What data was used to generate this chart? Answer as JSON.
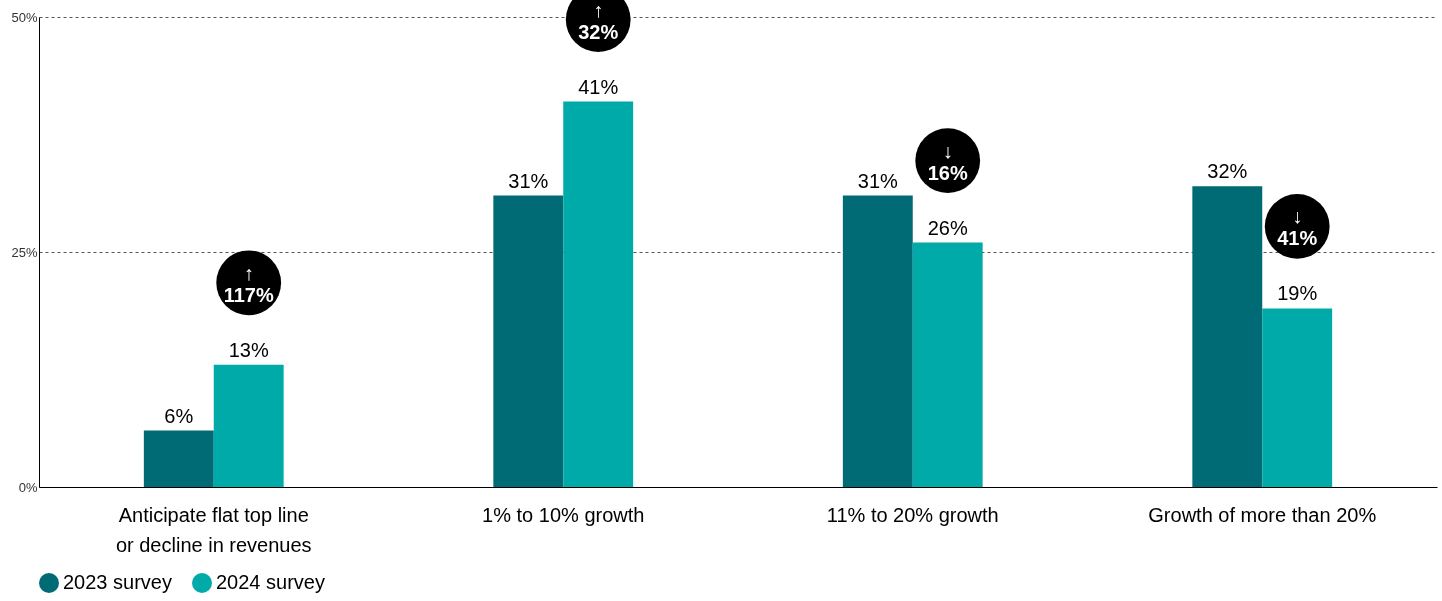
{
  "chart_data": {
    "type": "bar",
    "categories": [
      "Anticipate flat top line or decline in revenues",
      "1% to 10% growth",
      "11% to 20% growth",
      "Growth of more than 20%"
    ],
    "series": [
      {
        "name": "2023 survey",
        "color": "#006a75",
        "values": [
          6,
          31,
          31,
          32
        ]
      },
      {
        "name": "2024 survey",
        "color": "#00aaa8",
        "values": [
          13,
          41,
          26,
          19
        ]
      }
    ],
    "ylim": [
      0,
      50
    ],
    "yticks": [
      {
        "value": 0,
        "label": "0%"
      },
      {
        "value": 25,
        "label": "25%"
      },
      {
        "value": 50,
        "label": "50%"
      }
    ],
    "value_labels": [
      [
        "6%",
        "31%",
        "31%",
        "32%"
      ],
      [
        "13%",
        "41%",
        "26%",
        "19%"
      ]
    ],
    "annotations": [
      "↑ 117%",
      "↑ 32%",
      "↓ 16%",
      "↓ 41%"
    ],
    "grid": "y",
    "legend": "bottom"
  }
}
